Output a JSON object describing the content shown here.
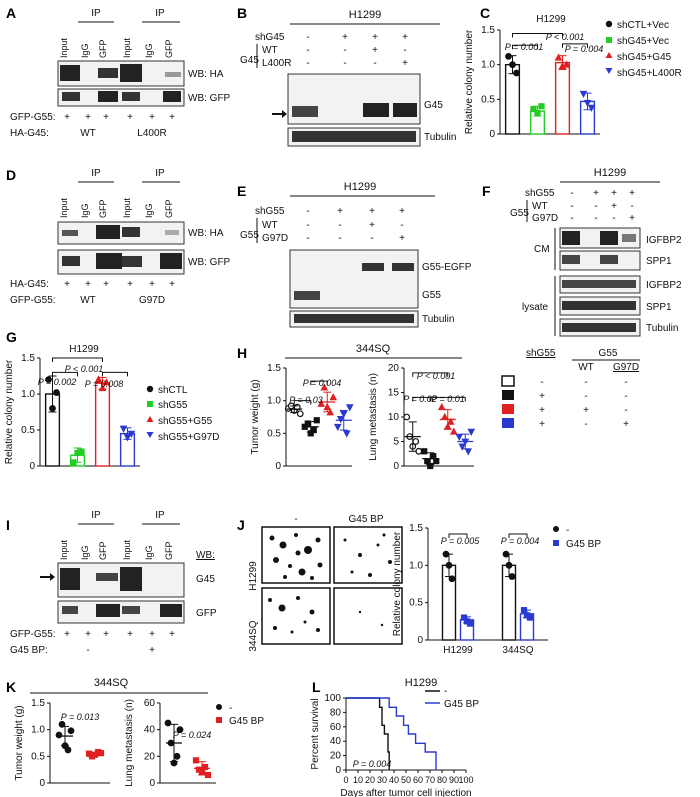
{
  "panels": {
    "A": {
      "label": "A",
      "ip_header": [
        "IP",
        "IP"
      ],
      "lanes": [
        "Input",
        "IgG",
        "GFP",
        "Input",
        "IgG",
        "GFP"
      ],
      "wb": [
        "WB: HA",
        "WB: GFP"
      ],
      "row1_label": "GFP-G55:",
      "row1_values": [
        "+",
        "+",
        "+",
        "+",
        "+",
        "+"
      ],
      "row2_label": "HA-G45:",
      "row2_values": [
        "WT",
        "L400R"
      ]
    },
    "B": {
      "label": "B",
      "cell": "H1299",
      "row_shG45": "shG45",
      "row_G45": "G45",
      "row_WT": "WT",
      "row_L400R": "L400R",
      "shG45_values": [
        "-",
        "+",
        "+",
        "+"
      ],
      "WT_values": [
        "-",
        "-",
        "+",
        "-"
      ],
      "L400R_values": [
        "-",
        "-",
        "-",
        "+"
      ],
      "bands": [
        "G45",
        "Tubulin"
      ]
    },
    "C": {
      "label": "C",
      "cell": "H1299",
      "p1": "P = 0.001",
      "p2": "P < 0.001",
      "p3": "P = 0.004",
      "legend": [
        "shCTL+Vec",
        "shG45+Vec",
        "shG45+G45",
        "shG45+L400R"
      ]
    },
    "D": {
      "label": "D",
      "ip_header": [
        "IP",
        "IP"
      ],
      "lanes": [
        "Input",
        "IgG",
        "GFP",
        "Input",
        "IgG",
        "GFP"
      ],
      "wb": [
        "WB: HA",
        "WB: GFP"
      ],
      "row1_label": "HA-G45:",
      "row1_values": [
        "+",
        "+",
        "+",
        "+",
        "+",
        "+"
      ],
      "row2_label": "GFP-G55:",
      "row2_values": [
        "WT",
        "G97D"
      ]
    },
    "E": {
      "label": "E",
      "cell": "H1299",
      "row_shG55": "shG55",
      "row_G55": "G55",
      "row_WT": "WT",
      "row_G97D": "G97D",
      "shG55_values": [
        "-",
        "+",
        "+",
        "+"
      ],
      "WT_values": [
        "-",
        "-",
        "+",
        "-"
      ],
      "G97D_values": [
        "-",
        "-",
        "-",
        "+"
      ],
      "bands": [
        "G55-EGFP",
        "G55",
        "Tubulin"
      ]
    },
    "F": {
      "label": "F",
      "cell": "H1299",
      "row_shG55": "shG55",
      "row_G55": "G55",
      "row_WT": "WT",
      "row_G97D": "G97D",
      "shG55_values": [
        "-",
        "+",
        "+",
        "+"
      ],
      "WT_values": [
        "-",
        "-",
        "+",
        "-"
      ],
      "G97D_values": [
        "-",
        "-",
        "-",
        "+"
      ],
      "group_cm": "CM",
      "group_lysate": "lysate",
      "bands_cm": [
        "IGFBP2",
        "SPP1"
      ],
      "bands_lysate": [
        "IGFBP2",
        "SPP1",
        "Tubulin"
      ]
    },
    "G": {
      "label": "G",
      "cell": "H1299",
      "p1": "P = 0.002",
      "p2": "P < 0.001",
      "p3": "P = 0.008",
      "legend": [
        "shCTL",
        "shG55",
        "shG55+G55",
        "shG55+G97D"
      ]
    },
    "H": {
      "label": "H",
      "cell": "344SQ",
      "p_tw1": "P = 0.03",
      "p_tw2": "P = 0.004",
      "p_lm1": "P < 0.001",
      "p_lm2": "P = 0.02",
      "p_lm3": "P = 0.01",
      "key_shG55": "shG55",
      "key_G55": "G55",
      "key_WT": "WT",
      "key_G97D": "G97D",
      "key_rows": [
        [
          "-",
          "-",
          "-"
        ],
        [
          "+",
          "-",
          "-"
        ],
        [
          "+",
          "+",
          "-"
        ],
        [
          "+",
          "-",
          "+"
        ]
      ]
    },
    "I": {
      "label": "I",
      "ip_header": [
        "IP",
        "IP"
      ],
      "lanes": [
        "Input",
        "IgG",
        "GFP",
        "Input",
        "IgG",
        "GFP"
      ],
      "wb_header": "WB:",
      "bands": [
        "G45",
        "GFP"
      ],
      "row1_label": "GFP-G55:",
      "row1_values": [
        "+",
        "+",
        "+",
        "+",
        "+",
        "+"
      ],
      "row2_label": "G45 BP:",
      "row2_values": [
        "-",
        "+"
      ]
    },
    "J": {
      "label": "J",
      "col_labels": [
        "-",
        "G45 BP"
      ],
      "row_labels": [
        "H1299",
        "344SQ"
      ],
      "p1": "P = 0.005",
      "p2": "P = 0.004",
      "legend": [
        "-",
        "G45 BP"
      ]
    },
    "K": {
      "label": "K",
      "cell": "344SQ",
      "p1": "P = 0.013",
      "p2": "P = 0.024",
      "legend": [
        "-",
        "G45 BP"
      ]
    },
    "L": {
      "label": "L",
      "cell": "H1299",
      "p": "P = 0.004",
      "legend": [
        "-",
        "G45 BP"
      ]
    }
  },
  "chart_data": [
    {
      "panel": "C",
      "type": "bar",
      "title": "H1299",
      "ylabel": "Relative colony number",
      "xlabel": "",
      "categories": [
        "shCTL+Vec",
        "shG45+Vec",
        "shG45+G45",
        "shG45+L400R"
      ],
      "values": [
        1.0,
        0.33,
        1.03,
        0.47
      ],
      "errors": [
        0.13,
        0.07,
        0.1,
        0.12
      ],
      "points": [
        [
          1.12,
          1.0,
          0.88
        ],
        [
          0.36,
          0.3,
          0.4
        ],
        [
          1.1,
          0.98,
          1.0
        ],
        [
          0.58,
          0.45,
          0.38
        ]
      ],
      "ylim": [
        0,
        1.5
      ],
      "yticks": [
        0,
        0.5,
        1.0,
        1.5
      ],
      "colors": [
        "#111111",
        "#22cc22",
        "#e02020",
        "#2a3ad0"
      ]
    },
    {
      "panel": "G",
      "type": "bar",
      "title": "H1299",
      "ylabel": "Relative colony number",
      "xlabel": "",
      "categories": [
        "shCTL",
        "shG55",
        "shG55+G55",
        "shG55+G97D"
      ],
      "values": [
        1.0,
        0.15,
        1.15,
        0.45
      ],
      "errors": [
        0.25,
        0.1,
        0.08,
        0.08
      ],
      "points": [
        [
          1.2,
          0.8,
          1.02
        ],
        [
          0.05,
          0.18,
          0.2
        ],
        [
          1.2,
          1.08,
          1.16
        ],
        [
          0.52,
          0.4,
          0.45
        ]
      ],
      "ylim": [
        0,
        1.5
      ],
      "yticks": [
        0,
        0.5,
        1.0,
        1.5
      ],
      "colors": [
        "#111111",
        "#22cc22",
        "#e02020",
        "#2a3ad0"
      ]
    },
    {
      "panel": "H-left",
      "type": "scatter",
      "title": "",
      "ylabel": "Tumor weight (g)",
      "xlabel": "",
      "categories": [
        "shCTL",
        "shG55",
        "shG55+G55",
        "shG55+G97D"
      ],
      "points": [
        [
          0.88,
          0.92,
          0.85,
          0.9,
          0.8
        ],
        [
          0.6,
          0.65,
          0.5,
          0.55,
          0.7
        ],
        [
          0.95,
          1.2,
          0.9,
          0.82,
          1.05
        ],
        [
          0.6,
          0.72,
          0.8,
          0.5,
          0.9
        ]
      ],
      "means": [
        0.87,
        0.6,
        0.98,
        0.7
      ],
      "sds": [
        0.05,
        0.08,
        0.15,
        0.15
      ],
      "ylim": [
        0,
        1.5
      ],
      "yticks": [
        0,
        0.5,
        1.0,
        1.5
      ],
      "colors": [
        "#111111",
        "#111111",
        "#e02020",
        "#2a3ad0"
      ],
      "filled": [
        false,
        true,
        true,
        true
      ]
    },
    {
      "panel": "H-right",
      "type": "scatter",
      "title": "",
      "ylabel": "Lung metastasis (n)",
      "xlabel": "",
      "categories": [
        "shCTL",
        "shG55",
        "shG55+G55",
        "shG55+G97D"
      ],
      "points": [
        [
          10,
          6,
          4,
          5,
          3
        ],
        [
          3,
          1,
          0,
          2,
          1
        ],
        [
          12,
          10,
          8,
          9,
          7
        ],
        [
          6,
          4,
          5,
          3,
          7
        ]
      ],
      "means": [
        6,
        1.5,
        9.5,
        5
      ],
      "sds": [
        3,
        1.2,
        2,
        1.5
      ],
      "ylim": [
        0,
        20
      ],
      "yticks": [
        0,
        5,
        10,
        15,
        20
      ],
      "colors": [
        "#111111",
        "#111111",
        "#e02020",
        "#2a3ad0"
      ],
      "filled": [
        false,
        true,
        true,
        true
      ]
    },
    {
      "panel": "J",
      "type": "bar",
      "title": "",
      "ylabel": "Relative colony number",
      "xlabel": "",
      "categories": [
        "H1299",
        "344SQ"
      ],
      "series": [
        {
          "name": "-",
          "values": [
            1.0,
            1.0
          ],
          "errors": [
            0.15,
            0.15
          ],
          "points": [
            [
              1.15,
              1.0,
              0.82
            ],
            [
              1.15,
              1.0,
              0.85
            ]
          ]
        },
        {
          "name": "G45 BP",
          "values": [
            0.27,
            0.35
          ],
          "errors": [
            0.04,
            0.05
          ],
          "points": [
            [
              0.3,
              0.25,
              0.22
            ],
            [
              0.4,
              0.33,
              0.3
            ]
          ]
        }
      ],
      "ylim": [
        0,
        1.5
      ],
      "yticks": [
        0,
        0.5,
        1.0,
        1.5
      ],
      "colors": [
        "#111111",
        "#2a3ad0"
      ]
    },
    {
      "panel": "K-left",
      "type": "scatter",
      "title": "",
      "ylabel": "Tumor weight (g)",
      "xlabel": "",
      "categories": [
        "-",
        "G45 BP"
      ],
      "points": [
        [
          0.9,
          1.1,
          0.7,
          0.62,
          0.98
        ],
        [
          0.55,
          0.5,
          0.53,
          0.58,
          0.56
        ]
      ],
      "means": [
        0.88,
        0.54
      ],
      "sds": [
        0.18,
        0.03
      ],
      "ylim": [
        0,
        1.5
      ],
      "yticks": [
        0,
        0.5,
        1.0,
        1.5
      ],
      "colors": [
        "#111111",
        "#e02020"
      ]
    },
    {
      "panel": "K-right",
      "type": "scatter",
      "title": "",
      "ylabel": "Lung metastasis (n)",
      "xlabel": "",
      "categories": [
        "-",
        "G45 BP"
      ],
      "points": [
        [
          45,
          30,
          15,
          20,
          40
        ],
        [
          17,
          10,
          8,
          12,
          6
        ]
      ],
      "means": [
        30,
        11
      ],
      "sds": [
        14,
        5
      ],
      "ylim": [
        0,
        60
      ],
      "yticks": [
        0,
        20,
        40,
        60
      ],
      "colors": [
        "#111111",
        "#e02020"
      ]
    },
    {
      "panel": "L",
      "type": "line",
      "title": "H1299",
      "ylabel": "Percent survival",
      "xlabel": "Days after tumor cell injection",
      "series": [
        {
          "name": "-",
          "x": [
            0,
            28,
            28,
            30,
            30,
            32,
            32,
            35,
            35,
            36,
            36,
            36
          ],
          "y": [
            100,
            100,
            87,
            87,
            62,
            62,
            50,
            50,
            25,
            25,
            12,
            0
          ]
        },
        {
          "name": "G45 BP",
          "x": [
            0,
            36,
            36,
            42,
            42,
            48,
            48,
            52,
            52,
            58,
            58,
            66,
            66,
            75,
            75
          ],
          "y": [
            100,
            100,
            87,
            87,
            75,
            75,
            62,
            62,
            50,
            50,
            37,
            37,
            25,
            25,
            0
          ]
        }
      ],
      "xlim": [
        0,
        100
      ],
      "ylim": [
        0,
        100
      ],
      "xticks": [
        0,
        10,
        20,
        30,
        40,
        50,
        60,
        70,
        80,
        90,
        100
      ],
      "yticks": [
        0,
        20,
        40,
        60,
        80,
        100
      ],
      "colors": [
        "#111111",
        "#2a3ad0"
      ]
    }
  ]
}
